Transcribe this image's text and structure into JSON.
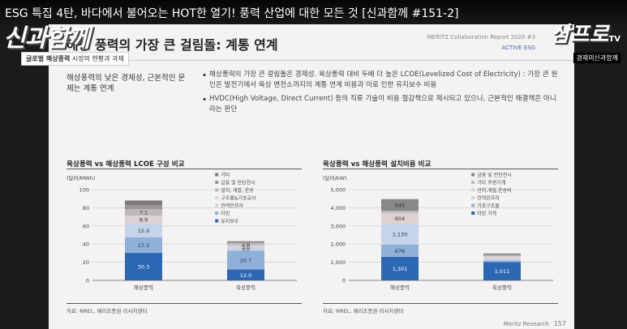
{
  "video": {
    "title": "ESG 특집 4탄, 바다에서 불어오는 HOT한 열기! 풍력 산업에 대한 모든 것 [신과함께 #151-2]",
    "logo_left": "신과함께",
    "logo_right": "삼프로",
    "logo_right_tv": "TV",
    "logo_right_sub": "경제의신과함께"
  },
  "slide": {
    "title": "해상 풍력의 가장 큰 걸림돌: 계통 연계",
    "report_name": "MERITZ Collaboration Report 2020 #3",
    "report_tag": "ACTIVE ESG",
    "section_label_strong": "글로벌 해상풍력",
    "section_label_rest": " 시장의 현황과 과제",
    "left_text": "해상풍력의 낮은 경제성, 근본적인 문제는 계통 연계",
    "bullets": [
      "해상풍력의 가장 큰 걸림돌은 경제성. 육상풍력 대비 두배 더 높은 LCOE(Levelized Cost of Electricity) : 가장 큰 원인은 발전기에서 육상 변전소까지의 계통 연계 비용과 이로 인한 유지보수 비용",
      "HVDC(High Voltage, Direct Current) 등의 직류 기술이 비용 절감책으로 제시되고 있으나, 근본적인 해결책은 아니라는 판단"
    ],
    "footer_org": "Meritz Research",
    "page_number": "157"
  },
  "chart_data": [
    {
      "type": "bar",
      "stacked": true,
      "title": "육상풍력 vs 해상풍력 LCOE 구성 비교",
      "ylabel": "(달러/MWh)",
      "ylim": [
        0,
        100
      ],
      "yticks": [
        0,
        20,
        40,
        60,
        80,
        100
      ],
      "categories": [
        "해상풍력",
        "육상풍력"
      ],
      "legend_position": "top-right",
      "series": [
        {
          "name": "유지보수",
          "color": "#2c67b3",
          "values": [
            30.3,
            12.0
          ],
          "labels": [
            "30.3",
            "12.0"
          ]
        },
        {
          "name": "터빈",
          "color": "#8fb0d9",
          "values": [
            17.2,
            20.7
          ],
          "labels": [
            "17.2",
            "20.7"
          ]
        },
        {
          "name": "전력인프라",
          "color": "#c5d4ea",
          "values": [
            15.0,
            3.0
          ],
          "labels": [
            "15.0",
            "3.0"
          ]
        },
        {
          "name": "구조물&기초공사",
          "color": "#dcd2d2",
          "values": [
            8.9,
            3.0
          ],
          "labels": [
            "8.9",
            "3.0"
          ]
        },
        {
          "name": "설치, 개발, 운송",
          "color": "#bdb9b9",
          "values": [
            7.1,
            2.6
          ],
          "labels": [
            "7.1",
            "2.6"
          ]
        },
        {
          "name": "금융 및 컨틴전시",
          "color": "#9a9697",
          "values": [
            4.5,
            0.8
          ],
          "labels": [
            "",
            ""
          ]
        },
        {
          "name": "기타",
          "color": "#7b797a",
          "values": [
            5.0,
            1.0
          ],
          "labels": [
            "",
            ""
          ]
        }
      ],
      "source": "자료: NREL, 메리츠증권 리서치센터"
    },
    {
      "type": "bar",
      "stacked": true,
      "title": "육상풍력 vs 해상풍력 설치비용 비교",
      "ylabel": "(달러/kW)",
      "ylim": [
        0,
        5000
      ],
      "yticks": [
        0,
        1000,
        2000,
        3000,
        4000,
        5000
      ],
      "categories": [
        "해상풍력",
        "육상풍력"
      ],
      "legend_position": "top-right",
      "series": [
        {
          "name": "터빈 가격",
          "color": "#2c67b3",
          "values": [
            1301,
            1011
          ],
          "labels": [
            "1,301",
            "1,011"
          ]
        },
        {
          "name": "기초구조물",
          "color": "#8fb0d9",
          "values": [
            676,
            80
          ],
          "labels": [
            "676",
            ""
          ]
        },
        {
          "name": "전력인프라",
          "color": "#c5d4ea",
          "values": [
            1130,
            120
          ],
          "labels": [
            "1,130",
            ""
          ]
        },
        {
          "name": "선치,개발,운송비",
          "color": "#dcd2d2",
          "values": [
            604,
            120
          ],
          "labels": [
            "604",
            ""
          ]
        },
        {
          "name": "기타 주변기계",
          "color": "#bdb9b9",
          "values": [
            120,
            60
          ],
          "labels": [
            "",
            ""
          ]
        },
        {
          "name": "금융 및 컨틴전시",
          "color": "#8a8788",
          "values": [
            645,
            90
          ],
          "labels": [
            "645",
            ""
          ]
        }
      ],
      "source": "자료: NREL, 메리츠증권 리서치센터"
    }
  ]
}
